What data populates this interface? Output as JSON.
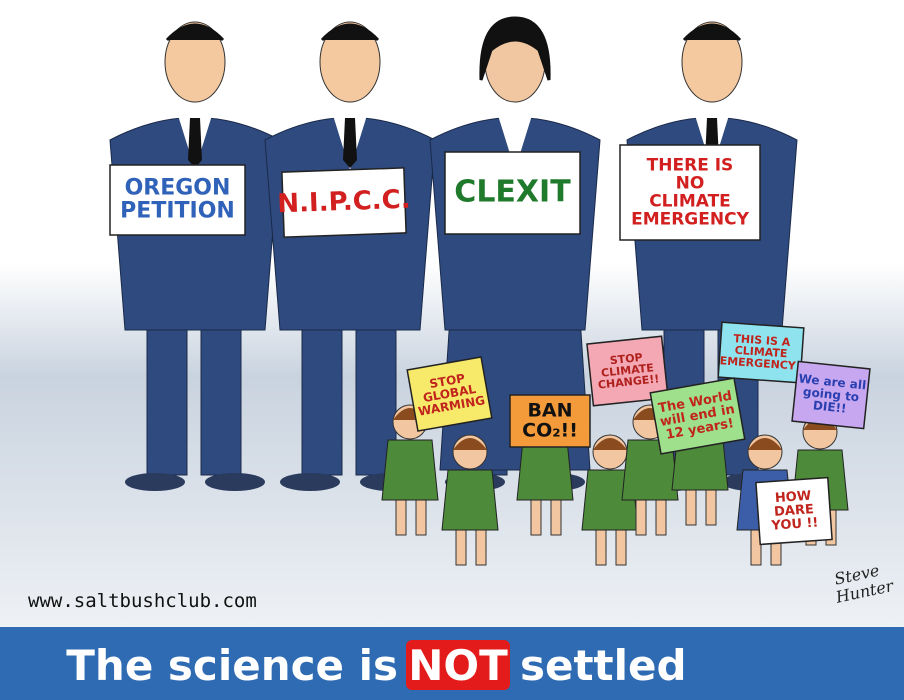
{
  "signs": [
    {
      "lines": [
        "OREGON",
        "PETITION"
      ],
      "color": "#2f62b8"
    },
    {
      "lines": [
        "N.I.P.C.C."
      ],
      "color": "#d21f1f"
    },
    {
      "lines": [
        "CLEXIT"
      ],
      "color": "#1f7a2c"
    },
    {
      "lines": [
        "THERE IS",
        "NO",
        "CLIMATE",
        "EMERGENCY"
      ],
      "color": "#d21f1f"
    }
  ],
  "protest_signs": [
    {
      "lines": [
        "STOP",
        "GLOBAL",
        "WARMING"
      ],
      "color": "#f7ea6a",
      "text_color": "#c0241c"
    },
    {
      "lines": [
        "BAN",
        "CO₂!!"
      ],
      "color": "#f39a3a",
      "text_color": "#111111"
    },
    {
      "lines": [
        "STOP",
        "CLIMATE",
        "CHANGE!!"
      ],
      "color": "#f3a8b4",
      "text_color": "#b0201c"
    },
    {
      "lines": [
        "THIS IS A",
        "CLIMATE",
        "EMERGENCY!"
      ],
      "color": "#8ee3ef",
      "text_color": "#c0241c"
    },
    {
      "lines": [
        "The World",
        "will end in",
        "12 years!"
      ],
      "color": "#9fe08c",
      "text_color": "#c0241c"
    },
    {
      "lines": [
        "We are all",
        "going to",
        "DIE!!"
      ],
      "color": "#c7a7f0",
      "text_color": "#2a3fb0"
    },
    {
      "lines": [
        "HOW",
        "DARE",
        "YOU !!"
      ],
      "color": "#ffffff",
      "text_color": "#c0241c"
    }
  ],
  "website": "www.saltbushclub.com",
  "signature": [
    "Steve",
    "Hunter"
  ],
  "banner": {
    "before": "The science is",
    "highlight": "NOT",
    "after": "settled"
  }
}
